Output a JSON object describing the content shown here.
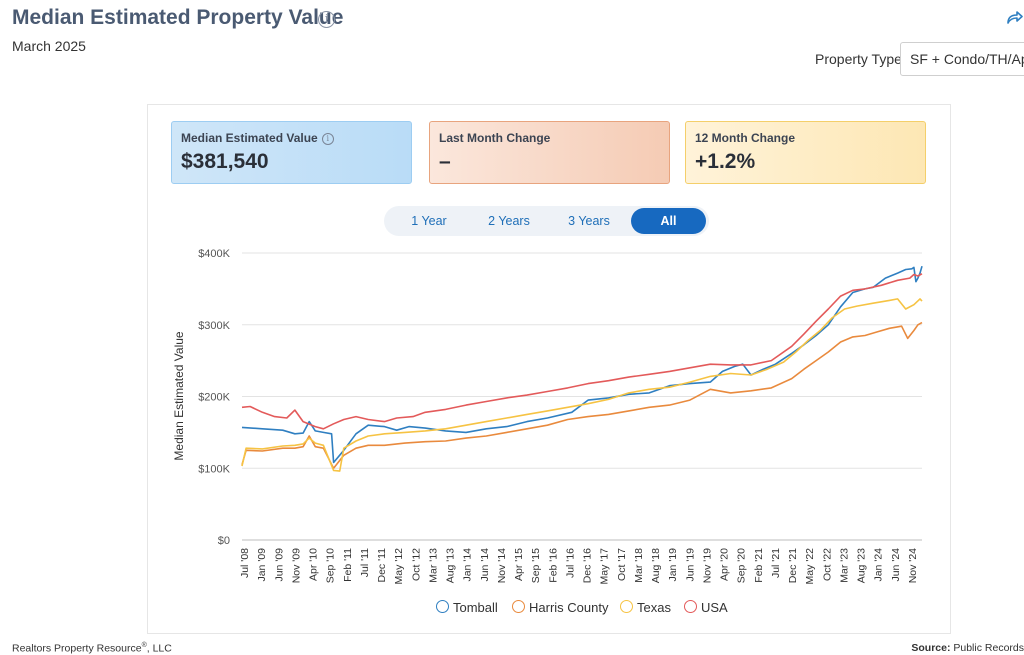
{
  "header": {
    "title": "Median Estimated Property Value",
    "subtitle": "March 2025",
    "info_icon": "info-circle-icon",
    "share_icon": "share-arrow-icon"
  },
  "filter": {
    "label": "Property Type",
    "selected": "SF + Condo/TH/Apt"
  },
  "kpis": [
    {
      "label": "Median Estimated Value",
      "value": "$381,540",
      "has_info": true,
      "color": "#b9dcf7"
    },
    {
      "label": "Last Month Change",
      "value": "–",
      "color": "#f5cbb4"
    },
    {
      "label": "12 Month Change",
      "value": "+1.2%",
      "color": "#fde7b4"
    }
  ],
  "tabs": [
    {
      "label": "1 Year",
      "active": false
    },
    {
      "label": "2 Years",
      "active": false
    },
    {
      "label": "3 Years",
      "active": false
    },
    {
      "label": "All",
      "active": true
    }
  ],
  "chart_data": {
    "type": "line",
    "ylabel": "Median Estimated Value",
    "ylim": [
      0,
      400000
    ],
    "yticks": [
      0,
      100000,
      200000,
      300000,
      400000
    ],
    "ytick_labels": [
      "$0",
      "$100K",
      "$200K",
      "$300K",
      "$400K"
    ],
    "xlim": [
      2008.5,
      2025.2
    ],
    "xtick_labels": [
      "Jul '08",
      "Jan '09",
      "Jun '09",
      "Nov '09",
      "Apr '10",
      "Sep '10",
      "Feb '11",
      "Jul '11",
      "Dec '11",
      "May '12",
      "Oct '12",
      "Mar '13",
      "Aug '13",
      "Jan '14",
      "Jun '14",
      "Nov '14",
      "Apr '15",
      "Sep '15",
      "Feb '16",
      "Jul '16",
      "Dec '16",
      "May '17",
      "Oct '17",
      "Mar '18",
      "Aug '18",
      "Jan '19",
      "Jun '19",
      "Nov '19",
      "Apr '20",
      "Sep '20",
      "Feb '21",
      "Jul '21",
      "Dec '21",
      "May '22",
      "Oct '22",
      "Mar '23",
      "Aug '23",
      "Jan '24",
      "Jun '24",
      "Nov '24"
    ],
    "grid": true,
    "legend_position": "bottom",
    "series": [
      {
        "name": "Tomball",
        "color": "#2f7fc1",
        "points": [
          [
            2008.5,
            157000
          ],
          [
            2009.0,
            155000
          ],
          [
            2009.5,
            153000
          ],
          [
            2009.8,
            148000
          ],
          [
            2010.0,
            149000
          ],
          [
            2010.15,
            165000
          ],
          [
            2010.3,
            152000
          ],
          [
            2010.5,
            150000
          ],
          [
            2010.7,
            148000
          ],
          [
            2010.75,
            108000
          ],
          [
            2011.0,
            125000
          ],
          [
            2011.3,
            148000
          ],
          [
            2011.6,
            160000
          ],
          [
            2012.0,
            158000
          ],
          [
            2012.3,
            153000
          ],
          [
            2012.6,
            158000
          ],
          [
            2013.0,
            156000
          ],
          [
            2013.5,
            152000
          ],
          [
            2014.0,
            150000
          ],
          [
            2014.5,
            155000
          ],
          [
            2015.0,
            158000
          ],
          [
            2015.5,
            165000
          ],
          [
            2016.0,
            170000
          ],
          [
            2016.6,
            178000
          ],
          [
            2017.0,
            195000
          ],
          [
            2017.5,
            198000
          ],
          [
            2018.0,
            203000
          ],
          [
            2018.5,
            205000
          ],
          [
            2019.0,
            215000
          ],
          [
            2019.5,
            218000
          ],
          [
            2020.0,
            220000
          ],
          [
            2020.3,
            235000
          ],
          [
            2020.6,
            242000
          ],
          [
            2020.8,
            245000
          ],
          [
            2021.0,
            230000
          ],
          [
            2021.3,
            238000
          ],
          [
            2021.6,
            245000
          ],
          [
            2022.0,
            260000
          ],
          [
            2022.3,
            272000
          ],
          [
            2022.6,
            285000
          ],
          [
            2022.9,
            300000
          ],
          [
            2023.2,
            325000
          ],
          [
            2023.5,
            345000
          ],
          [
            2023.8,
            350000
          ],
          [
            2024.0,
            352000
          ],
          [
            2024.3,
            365000
          ],
          [
            2024.6,
            372000
          ],
          [
            2024.8,
            377000
          ],
          [
            2024.95,
            378000
          ],
          [
            2025.0,
            380000
          ],
          [
            2025.05,
            360000
          ],
          [
            2025.1,
            365000
          ],
          [
            2025.15,
            372000
          ],
          [
            2025.2,
            381540
          ]
        ]
      },
      {
        "name": "Harris County",
        "color": "#e98a3d",
        "points": [
          [
            2008.5,
            105000
          ],
          [
            2008.6,
            125000
          ],
          [
            2009.0,
            124000
          ],
          [
            2009.5,
            128000
          ],
          [
            2009.8,
            128000
          ],
          [
            2010.0,
            130000
          ],
          [
            2010.15,
            145000
          ],
          [
            2010.3,
            130000
          ],
          [
            2010.5,
            128000
          ],
          [
            2010.75,
            100000
          ],
          [
            2011.0,
            118000
          ],
          [
            2011.3,
            128000
          ],
          [
            2011.6,
            132000
          ],
          [
            2012.0,
            132000
          ],
          [
            2012.5,
            135000
          ],
          [
            2013.0,
            137000
          ],
          [
            2013.5,
            138000
          ],
          [
            2014.0,
            142000
          ],
          [
            2014.5,
            145000
          ],
          [
            2015.0,
            150000
          ],
          [
            2015.5,
            155000
          ],
          [
            2016.0,
            160000
          ],
          [
            2016.5,
            168000
          ],
          [
            2017.0,
            172000
          ],
          [
            2017.5,
            175000
          ],
          [
            2018.0,
            180000
          ],
          [
            2018.5,
            185000
          ],
          [
            2019.0,
            188000
          ],
          [
            2019.5,
            195000
          ],
          [
            2020.0,
            210000
          ],
          [
            2020.5,
            205000
          ],
          [
            2021.0,
            208000
          ],
          [
            2021.5,
            212000
          ],
          [
            2022.0,
            225000
          ],
          [
            2022.3,
            238000
          ],
          [
            2022.6,
            250000
          ],
          [
            2022.9,
            262000
          ],
          [
            2023.2,
            276000
          ],
          [
            2023.5,
            283000
          ],
          [
            2023.8,
            285000
          ],
          [
            2024.1,
            290000
          ],
          [
            2024.4,
            295000
          ],
          [
            2024.7,
            298000
          ],
          [
            2024.85,
            281000
          ],
          [
            2025.0,
            292000
          ],
          [
            2025.1,
            300000
          ],
          [
            2025.2,
            303000
          ]
        ]
      },
      {
        "name": "Texas",
        "color": "#f6c343",
        "points": [
          [
            2008.5,
            103000
          ],
          [
            2008.6,
            128000
          ],
          [
            2009.0,
            127000
          ],
          [
            2009.5,
            131000
          ],
          [
            2009.8,
            132000
          ],
          [
            2010.0,
            134000
          ],
          [
            2010.15,
            142000
          ],
          [
            2010.3,
            135000
          ],
          [
            2010.5,
            132000
          ],
          [
            2010.75,
            97000
          ],
          [
            2010.9,
            96000
          ],
          [
            2011.0,
            128000
          ],
          [
            2011.3,
            138000
          ],
          [
            2011.6,
            145000
          ],
          [
            2012.0,
            148000
          ],
          [
            2012.5,
            150000
          ],
          [
            2013.0,
            152000
          ],
          [
            2013.5,
            155000
          ],
          [
            2014.0,
            160000
          ],
          [
            2014.5,
            165000
          ],
          [
            2015.0,
            170000
          ],
          [
            2015.5,
            175000
          ],
          [
            2016.0,
            180000
          ],
          [
            2016.5,
            185000
          ],
          [
            2017.0,
            190000
          ],
          [
            2017.5,
            196000
          ],
          [
            2018.0,
            205000
          ],
          [
            2018.5,
            210000
          ],
          [
            2019.0,
            213000
          ],
          [
            2019.5,
            220000
          ],
          [
            2020.0,
            228000
          ],
          [
            2020.5,
            232000
          ],
          [
            2021.0,
            230000
          ],
          [
            2021.4,
            238000
          ],
          [
            2021.8,
            248000
          ],
          [
            2022.1,
            262000
          ],
          [
            2022.4,
            278000
          ],
          [
            2022.7,
            292000
          ],
          [
            2023.0,
            310000
          ],
          [
            2023.3,
            322000
          ],
          [
            2023.6,
            326000
          ],
          [
            2024.0,
            330000
          ],
          [
            2024.4,
            334000
          ],
          [
            2024.6,
            336000
          ],
          [
            2024.8,
            322000
          ],
          [
            2025.0,
            328000
          ],
          [
            2025.15,
            336000
          ],
          [
            2025.2,
            333000
          ]
        ]
      },
      {
        "name": "USA",
        "color": "#e35a5a",
        "points": [
          [
            2008.5,
            185000
          ],
          [
            2008.7,
            186000
          ],
          [
            2009.0,
            178000
          ],
          [
            2009.3,
            172000
          ],
          [
            2009.6,
            170000
          ],
          [
            2009.8,
            181000
          ],
          [
            2010.0,
            165000
          ],
          [
            2010.3,
            158000
          ],
          [
            2010.5,
            155000
          ],
          [
            2010.75,
            162000
          ],
          [
            2011.0,
            168000
          ],
          [
            2011.3,
            172000
          ],
          [
            2011.6,
            168000
          ],
          [
            2012.0,
            165000
          ],
          [
            2012.3,
            170000
          ],
          [
            2012.7,
            172000
          ],
          [
            2013.0,
            178000
          ],
          [
            2013.5,
            182000
          ],
          [
            2014.0,
            188000
          ],
          [
            2014.5,
            193000
          ],
          [
            2015.0,
            198000
          ],
          [
            2015.5,
            202000
          ],
          [
            2016.0,
            207000
          ],
          [
            2016.5,
            212000
          ],
          [
            2017.0,
            218000
          ],
          [
            2017.5,
            222000
          ],
          [
            2018.0,
            227000
          ],
          [
            2018.5,
            231000
          ],
          [
            2019.0,
            235000
          ],
          [
            2019.5,
            240000
          ],
          [
            2020.0,
            245000
          ],
          [
            2020.5,
            244000
          ],
          [
            2021.0,
            244000
          ],
          [
            2021.5,
            250000
          ],
          [
            2022.0,
            270000
          ],
          [
            2022.3,
            287000
          ],
          [
            2022.6,
            305000
          ],
          [
            2022.9,
            322000
          ],
          [
            2023.2,
            340000
          ],
          [
            2023.5,
            348000
          ],
          [
            2023.8,
            350000
          ],
          [
            2024.2,
            355000
          ],
          [
            2024.6,
            362000
          ],
          [
            2024.9,
            365000
          ],
          [
            2025.0,
            370000
          ],
          [
            2025.1,
            368000
          ],
          [
            2025.2,
            371000
          ]
        ]
      }
    ]
  },
  "legend": [
    {
      "name": "Tomball",
      "color": "#2f7fc1"
    },
    {
      "name": "Harris County",
      "color": "#e98a3d"
    },
    {
      "name": "Texas",
      "color": "#f6c343"
    },
    {
      "name": "USA",
      "color": "#e35a5a"
    }
  ],
  "footer": {
    "left": "Realtors Property Resource",
    "left_reg": "®",
    "left_suffix": ", LLC",
    "source_label": "Source:",
    "source_value": "Public Records"
  }
}
